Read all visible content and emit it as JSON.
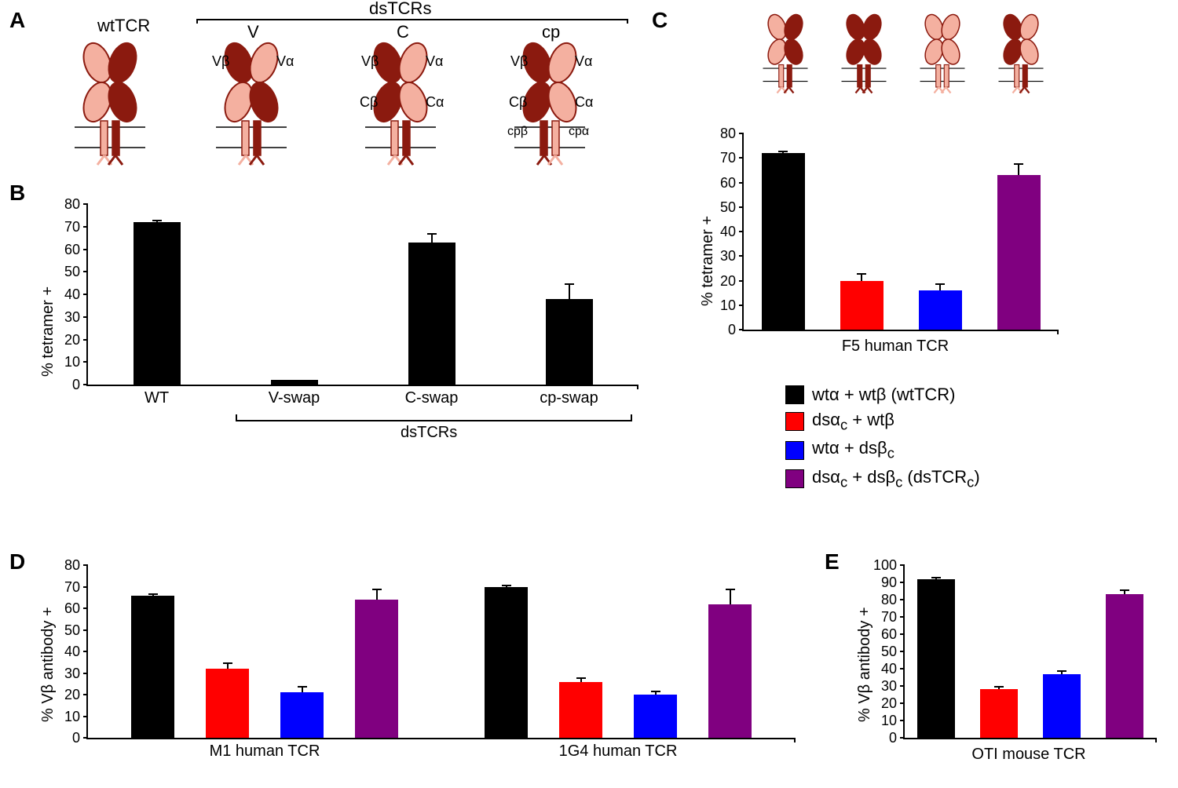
{
  "colors": {
    "black": "#000000",
    "red": "#ff0000",
    "blue": "#0000ff",
    "purple": "#800080",
    "tcr_light": "#f4b0a0",
    "tcr_dark": "#8b1a0f",
    "white": "#ffffff"
  },
  "panelLabels": {
    "A": "A",
    "B": "B",
    "C": "C",
    "D": "D",
    "E": "E"
  },
  "panelA": {
    "wt_label": "wtTCR",
    "ds_header": "dsTCRs",
    "labels": {
      "V": "V",
      "C": "C",
      "cp": "cp"
    },
    "domain_labels": {
      "Vb": "Vβ",
      "Va": "Vα",
      "Cb": "Cβ",
      "Ca": "Cα",
      "cpb": "cpβ",
      "cpa": "cpα"
    }
  },
  "panelB": {
    "type": "bar",
    "ylabel": "% tetramer +",
    "ylim": [
      0,
      80
    ],
    "ytick_step": 10,
    "categories": [
      "WT",
      "V-swap",
      "C-swap",
      "cp-swap"
    ],
    "sub_label": "dsTCRs",
    "values": [
      72,
      2,
      63,
      38
    ],
    "errors": [
      1,
      0,
      4,
      7
    ],
    "bar_colors": [
      "#000000",
      "#000000",
      "#000000",
      "#000000"
    ]
  },
  "panelC": {
    "type": "bar",
    "ylabel": "% tetramer +",
    "xlabel": "F5 human TCR",
    "ylim": [
      0,
      80
    ],
    "ytick_step": 10,
    "values": [
      72,
      20,
      16,
      63
    ],
    "errors": [
      1,
      3,
      3,
      5
    ],
    "bar_colors": [
      "#000000",
      "#ff0000",
      "#0000ff",
      "#800080"
    ]
  },
  "legend": {
    "items": [
      {
        "color": "#000000",
        "label": "wtα + wtβ (wtTCR)"
      },
      {
        "color": "#ff0000",
        "label": "dsα_c + wtβ"
      },
      {
        "color": "#0000ff",
        "label": "wtα + dsβ_c"
      },
      {
        "color": "#800080",
        "label": "dsα_c + dsβ_c (dsTCR_c)"
      }
    ]
  },
  "panelD": {
    "type": "bar",
    "ylabel": "% Vβ antibody +",
    "ylim": [
      0,
      80
    ],
    "ytick_step": 10,
    "groups": [
      {
        "label": "M1 human TCR",
        "values": [
          66,
          32,
          21,
          64
        ],
        "errors": [
          1,
          3,
          3,
          5
        ]
      },
      {
        "label": "1G4 human TCR",
        "values": [
          70,
          26,
          20,
          62
        ],
        "errors": [
          1,
          2,
          2,
          7
        ]
      }
    ],
    "bar_colors": [
      "#000000",
      "#ff0000",
      "#0000ff",
      "#800080"
    ]
  },
  "panelE": {
    "type": "bar",
    "ylabel": "% Vβ antibody +",
    "xlabel": "OTI mouse TCR",
    "ylim": [
      0,
      100
    ],
    "ytick_step": 10,
    "values": [
      92,
      28,
      37,
      83
    ],
    "errors": [
      1,
      2,
      2,
      3
    ],
    "bar_colors": [
      "#000000",
      "#ff0000",
      "#0000ff",
      "#800080"
    ]
  },
  "typography": {
    "panel_label_fontsize": 28,
    "axis_fontsize": 20,
    "tick_fontsize": 18,
    "legend_fontsize": 22,
    "font_family": "Arial"
  }
}
